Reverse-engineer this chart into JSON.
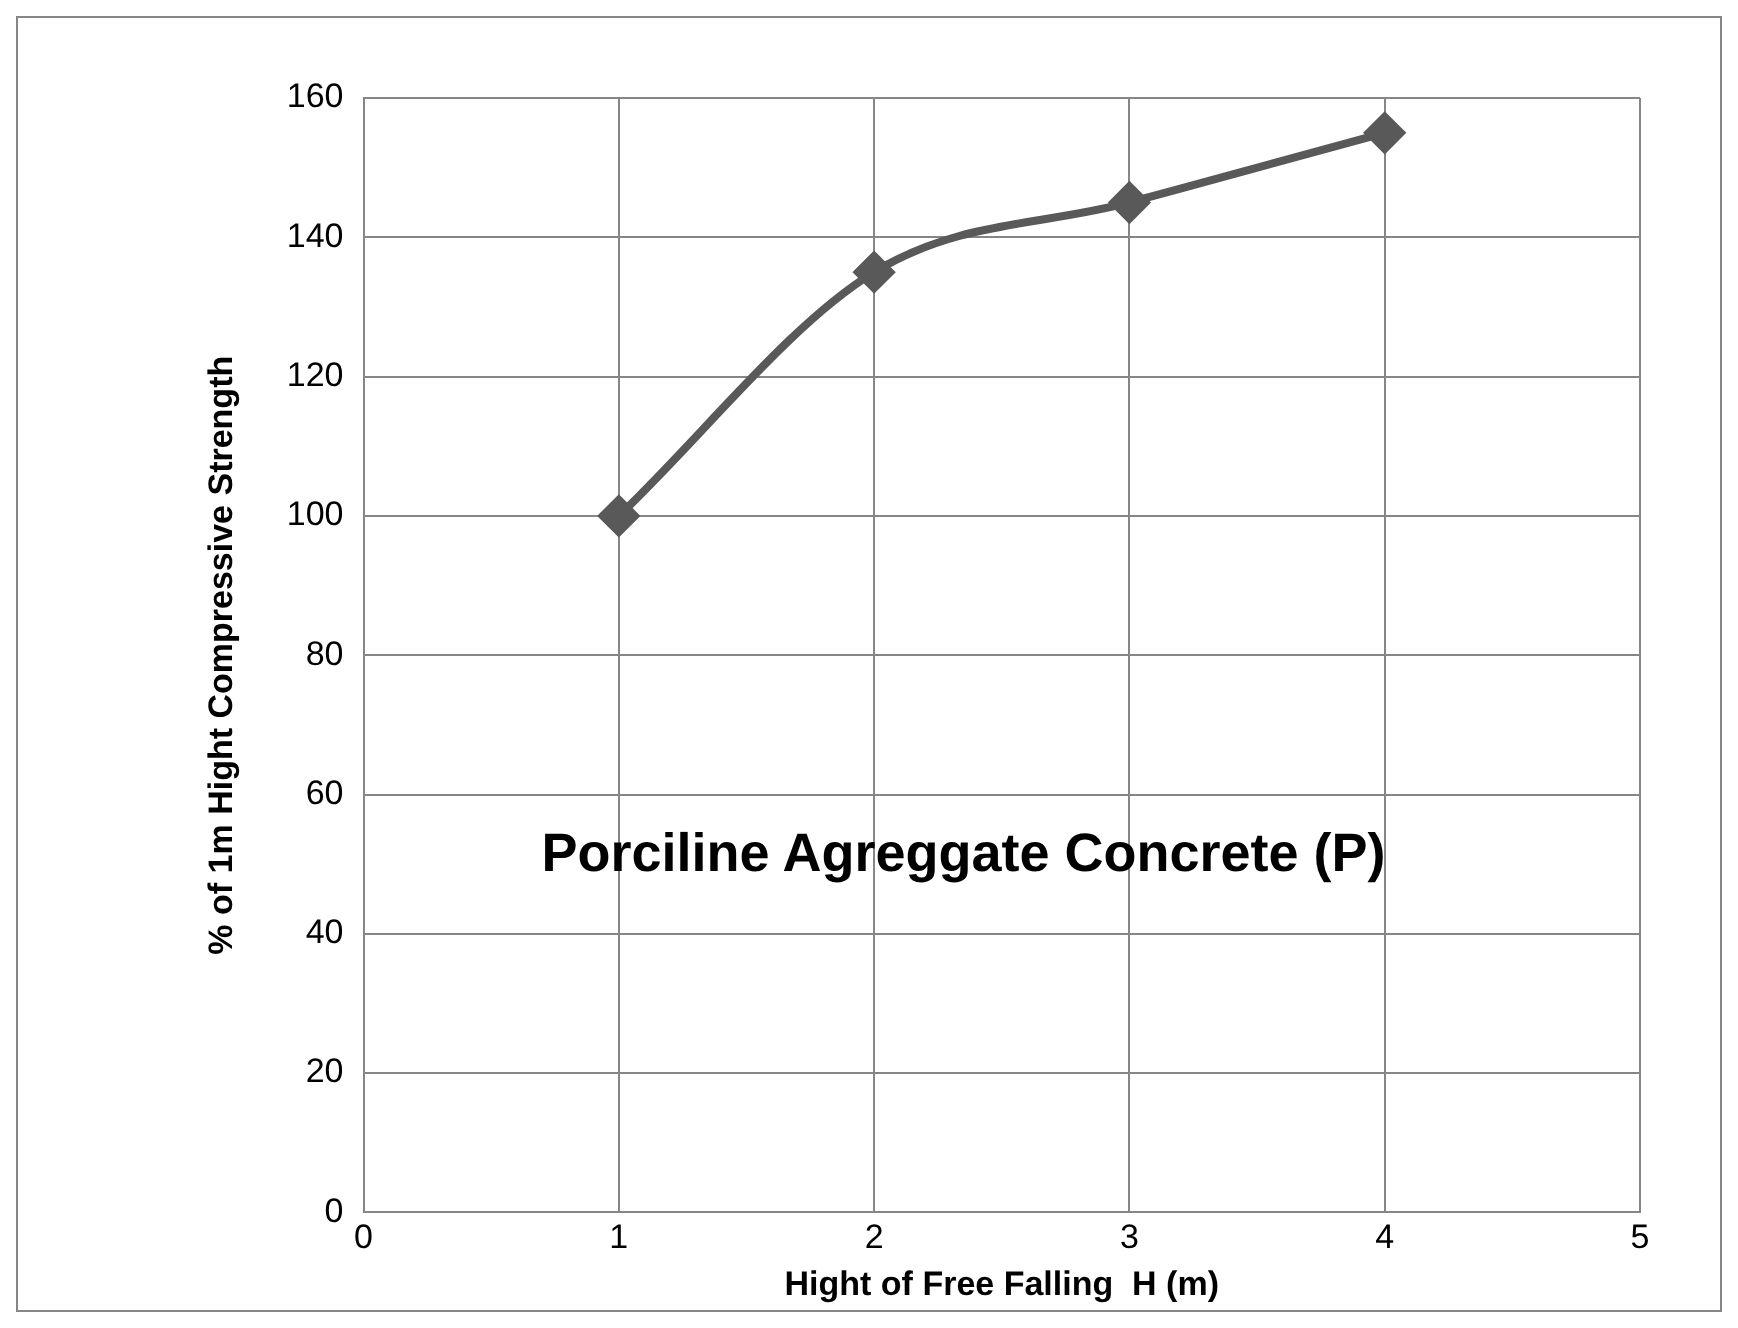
{
  "chart_data": {
    "type": "line",
    "xlabel": "Hight of Free Falling  H (m)",
    "ylabel": "% of 1m Hight Compressive Strength",
    "x": [
      1,
      2,
      3,
      4
    ],
    "series": [
      {
        "color": "#595959",
        "values": [
          100,
          135,
          145,
          155
        ]
      }
    ],
    "xlim": [
      0,
      5
    ],
    "xticks": [
      0,
      1,
      2,
      3,
      4,
      5
    ],
    "ylim": [
      0,
      160
    ],
    "yticks": [
      0,
      20,
      40,
      60,
      80,
      100,
      120,
      140,
      160
    ],
    "grid": true,
    "legend": false,
    "marker": "diamond",
    "line_style": "solid",
    "annotations": [
      "Porciline Agreggate Concrete (P)"
    ]
  }
}
